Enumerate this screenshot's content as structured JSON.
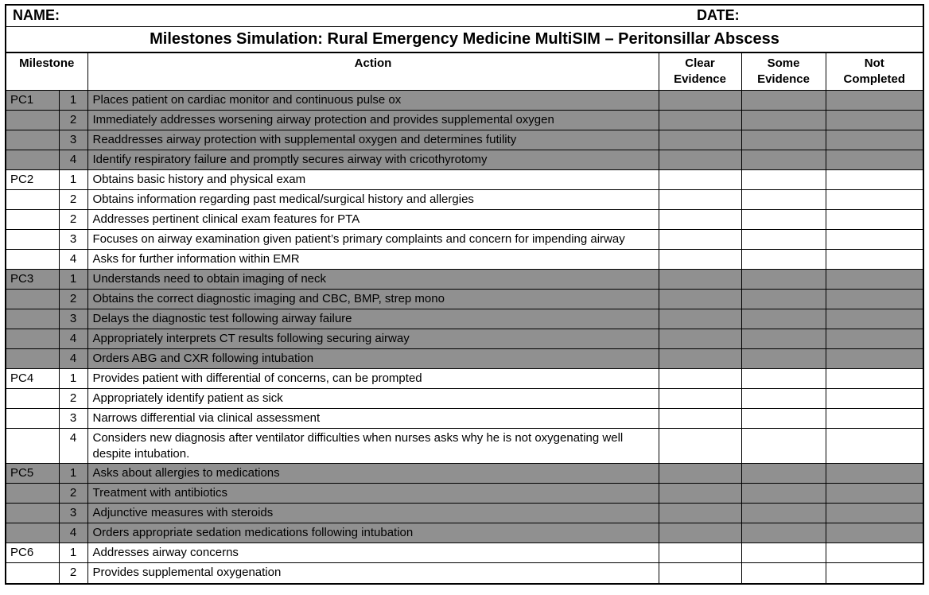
{
  "header": {
    "name_label": "NAME:",
    "date_label": "DATE:"
  },
  "title": "Milestones Simulation: Rural Emergency Medicine MultiSIM – Peritonsillar Abscess",
  "columns": {
    "milestone": "Milestone",
    "action": "Action",
    "clear_evidence": "Clear Evidence",
    "some_evidence": "Some Evidence",
    "not_completed": "Not Completed"
  },
  "colors": {
    "shaded_row": "#909090",
    "border": "#000000"
  },
  "rows": [
    {
      "milestone": "PC1",
      "num": "1",
      "action": "Places patient on cardiac monitor and continuous pulse ox",
      "shaded": true
    },
    {
      "milestone": "",
      "num": "2",
      "action": "Immediately addresses worsening airway protection and provides supplemental oxygen",
      "shaded": true
    },
    {
      "milestone": "",
      "num": "3",
      "action": "Readdresses airway protection with supplemental oxygen and determines futility",
      "shaded": true
    },
    {
      "milestone": "",
      "num": "4",
      "action": "Identify respiratory failure and promptly secures airway with cricothyrotomy",
      "shaded": true
    },
    {
      "milestone": "PC2",
      "num": "1",
      "action": "Obtains basic history and physical exam",
      "shaded": false
    },
    {
      "milestone": "",
      "num": "2",
      "action": "Obtains information regarding past medical/surgical history and allergies",
      "shaded": false
    },
    {
      "milestone": "",
      "num": "2",
      "action": "Addresses pertinent clinical exam features for PTA",
      "shaded": false
    },
    {
      "milestone": "",
      "num": "3",
      "action": "Focuses on airway examination given patient’s primary complaints and concern for impending airway",
      "shaded": false
    },
    {
      "milestone": "",
      "num": "4",
      "action": "Asks for further information within EMR",
      "shaded": false
    },
    {
      "milestone": "PC3",
      "num": "1",
      "action": "Understands need to obtain imaging of neck",
      "shaded": true
    },
    {
      "milestone": "",
      "num": "2",
      "action": "Obtains the correct diagnostic imaging and CBC, BMP, strep mono",
      "shaded": true
    },
    {
      "milestone": "",
      "num": "3",
      "action": "Delays the diagnostic test following airway failure",
      "shaded": true
    },
    {
      "milestone": "",
      "num": "4",
      "action": "Appropriately interprets CT results following securing airway",
      "shaded": true
    },
    {
      "milestone": "",
      "num": "4",
      "action": "Orders ABG and CXR following intubation",
      "shaded": true
    },
    {
      "milestone": "PC4",
      "num": "1",
      "action": "Provides patient with differential of concerns, can be prompted",
      "shaded": false
    },
    {
      "milestone": "",
      "num": "2",
      "action": "Appropriately identify patient as sick",
      "shaded": false
    },
    {
      "milestone": "",
      "num": "3",
      "action": "Narrows differential via clinical assessment",
      "shaded": false
    },
    {
      "milestone": "",
      "num": "4",
      "action": "Considers new diagnosis after ventilator difficulties when nurses asks why he is not oxygenating well despite intubation.",
      "shaded": false
    },
    {
      "milestone": "PC5",
      "num": "1",
      "action": "Asks about allergies to medications",
      "shaded": true
    },
    {
      "milestone": "",
      "num": "2",
      "action": "Treatment with antibiotics",
      "shaded": true
    },
    {
      "milestone": "",
      "num": "3",
      "action": "Adjunctive measures with steroids",
      "shaded": true
    },
    {
      "milestone": "",
      "num": "4",
      "action": "Orders appropriate sedation medications following intubation",
      "shaded": true
    },
    {
      "milestone": "PC6",
      "num": "1",
      "action": "Addresses airway concerns",
      "shaded": false
    },
    {
      "milestone": "",
      "num": "2",
      "action": "Provides supplemental oxygenation",
      "shaded": false
    }
  ]
}
